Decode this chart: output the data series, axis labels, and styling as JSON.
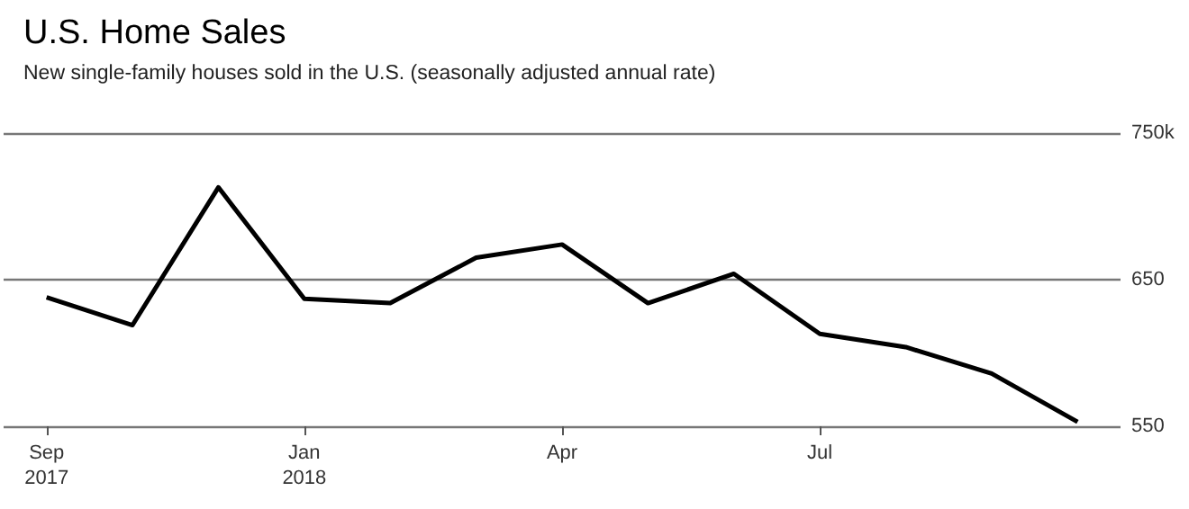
{
  "chart_data": {
    "type": "line",
    "title": "U.S. Home Sales",
    "subtitle": "New single-family houses sold in the U.S. (seasonally adjusted annual rate)",
    "categories": [
      "Sep\n2017",
      null,
      null,
      "Jan\n2018",
      null,
      null,
      "Apr",
      null,
      null,
      "Jul",
      null,
      null,
      null
    ],
    "series": [
      {
        "color": "#000000",
        "values": [
          638,
          619,
          713,
          637,
          634,
          665,
          674,
          634,
          654,
          613,
          604,
          586,
          553
        ]
      }
    ],
    "ylim": [
      550,
      750
    ],
    "yticks": [
      550,
      650,
      {
        "value": 750,
        "label": "750k"
      }
    ],
    "grid": "y",
    "marker": "none",
    "line_style": "solid"
  }
}
